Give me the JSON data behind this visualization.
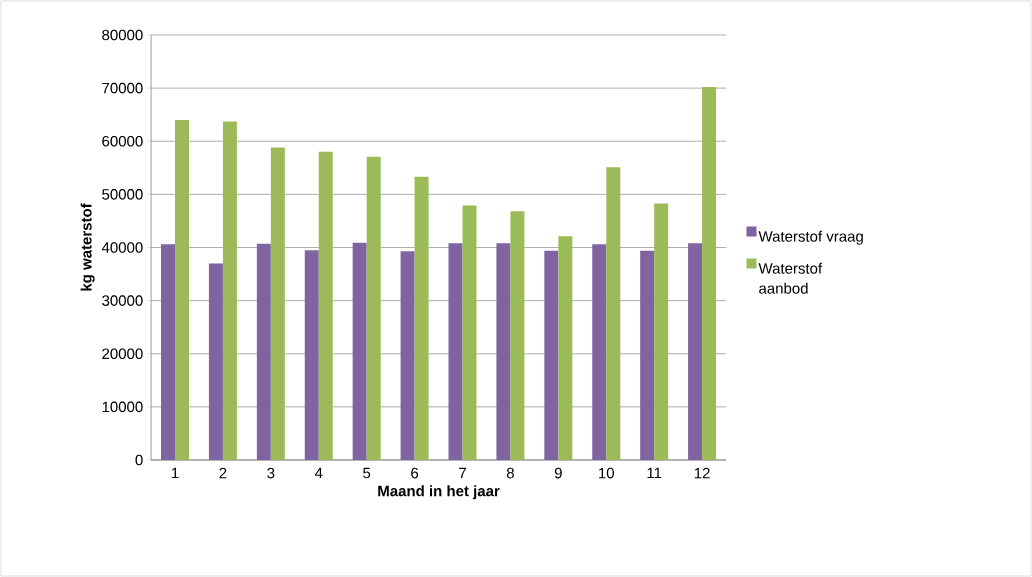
{
  "chart_data": {
    "type": "bar",
    "xlabel": "Maand in het jaar",
    "ylabel": "kg waterstof",
    "categories": [
      "1",
      "2",
      "3",
      "4",
      "5",
      "6",
      "7",
      "8",
      "9",
      "10",
      "11",
      "12"
    ],
    "series": [
      {
        "name": "Waterstof vraag",
        "color": "#8064a2",
        "values": [
          40600,
          37000,
          40700,
          39500,
          40900,
          39300,
          40800,
          40800,
          39400,
          40600,
          39400,
          40800
        ]
      },
      {
        "name": "Waterstof aanbod",
        "color": "#9bbb59",
        "values": [
          64000,
          63700,
          58800,
          58000,
          57100,
          53300,
          47900,
          46800,
          42100,
          55100,
          48300,
          70200
        ]
      }
    ],
    "ylim": [
      0,
      80000
    ],
    "yticks": [
      0,
      10000,
      20000,
      30000,
      40000,
      50000,
      60000,
      70000,
      80000
    ],
    "grid": "y",
    "legend": "right"
  }
}
